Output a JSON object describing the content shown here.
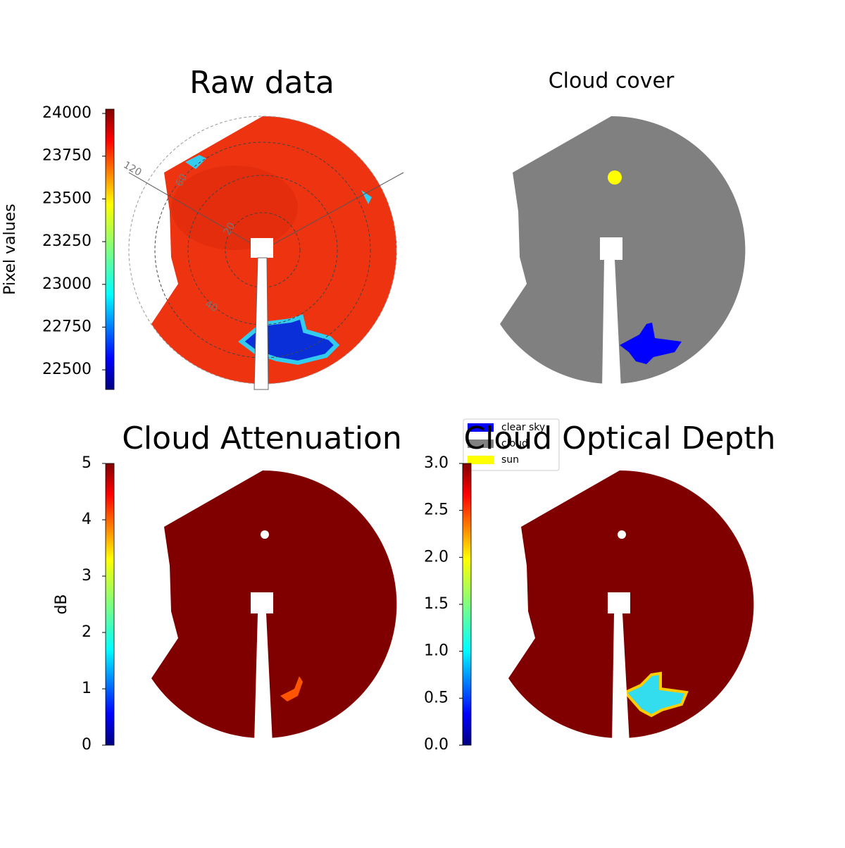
{
  "chart_data": [
    {
      "type": "image",
      "title": "Raw data",
      "colorbar_label": "Pixel values",
      "colormap": "jet",
      "ylim": [
        22385,
        24025
      ],
      "yticks": [
        22500,
        22750,
        23000,
        23250,
        23500,
        23750,
        24000
      ],
      "polar_labels": [
        "120",
        "60",
        "20",
        "40"
      ]
    },
    {
      "type": "categorical-image",
      "title": "Cloud cover",
      "legend": [
        {
          "name": "clear sky",
          "color": "#0000ff"
        },
        {
          "name": "cloud",
          "color": "#808080"
        },
        {
          "name": "sun",
          "color": "#ffff00"
        }
      ]
    },
    {
      "type": "image",
      "title": "Cloud Attenuation",
      "colorbar_label": "dB",
      "colormap": "jet",
      "ylim": [
        0,
        5
      ],
      "yticks": [
        0,
        1,
        2,
        3,
        4,
        5
      ]
    },
    {
      "type": "image",
      "title": "Cloud Optical Depth",
      "colormap": "jet",
      "ylim": [
        0,
        3
      ],
      "yticks": [
        {
          "value": 0,
          "label": "0.0"
        },
        0.5,
        {
          "value": 1,
          "label": "1.0"
        },
        1.5,
        {
          "value": 2,
          "label": "2.0"
        },
        2.5,
        {
          "value": 3,
          "label": "3.0"
        }
      ]
    }
  ]
}
